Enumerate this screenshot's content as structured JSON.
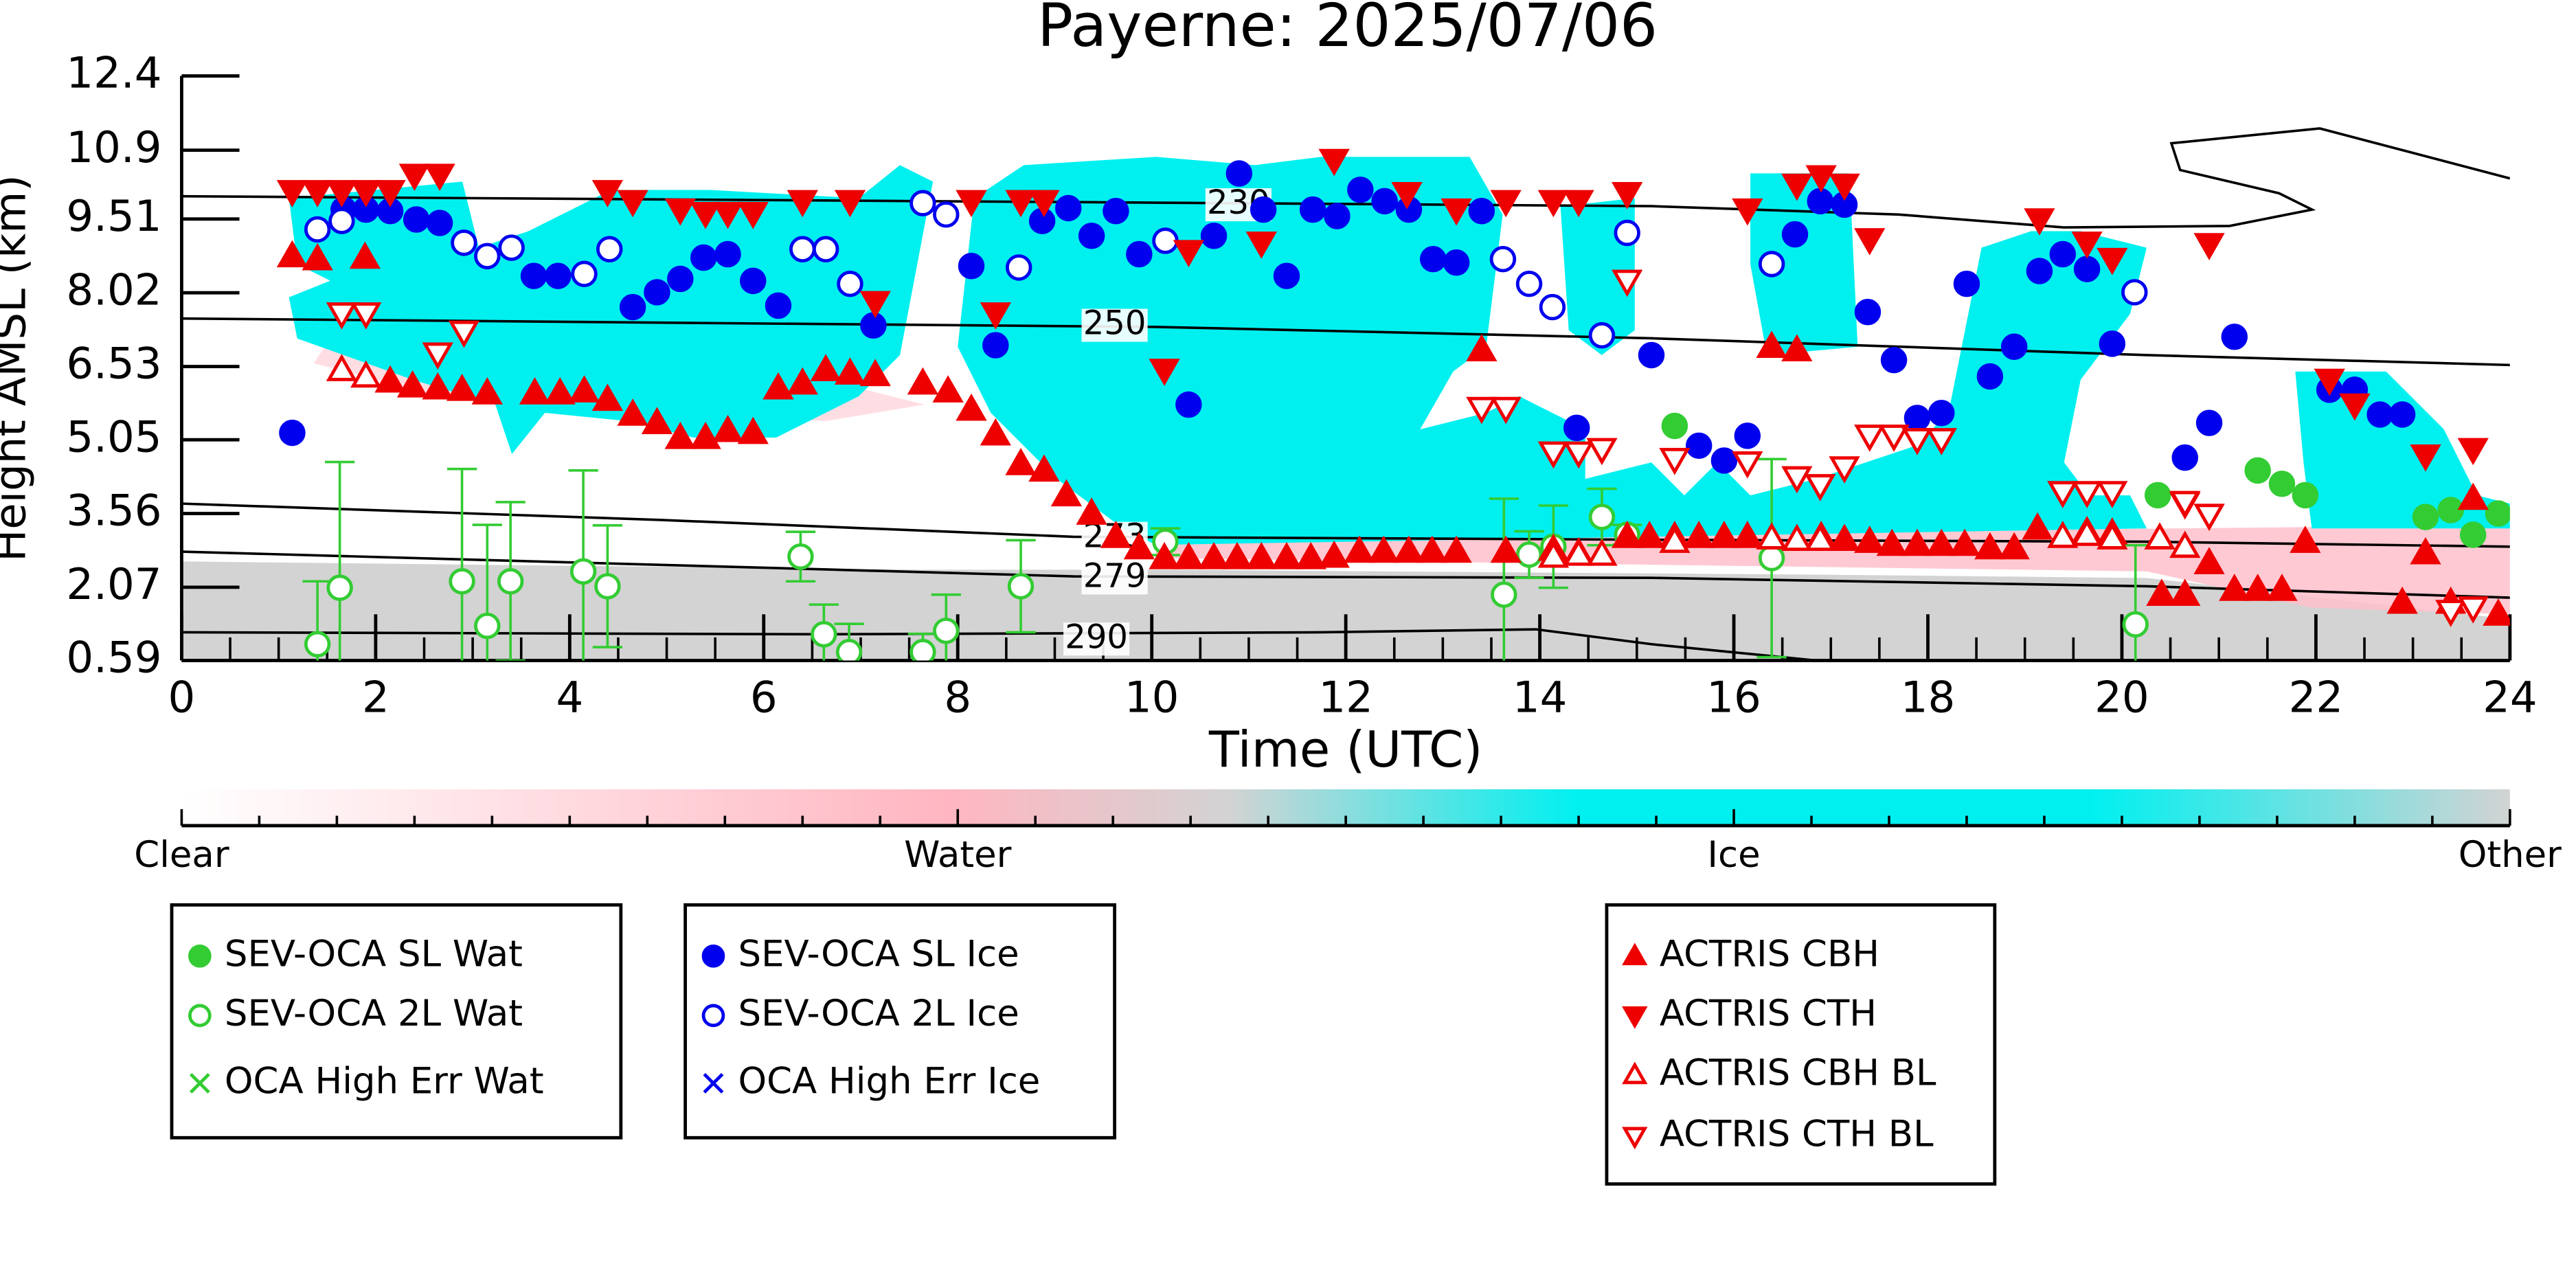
{
  "chart_data": {
    "type": "scatter",
    "title": "Payerne: 2025/07/06",
    "x_label": "Time (UTC)",
    "y_label": "Height AMSL (km)",
    "xlim": [
      0,
      24
    ],
    "xticks": [
      0,
      2,
      4,
      6,
      8,
      10,
      12,
      14,
      16,
      18,
      20,
      22,
      24
    ],
    "ylim": [
      0.59,
      12.4
    ],
    "yticks": [
      0.59,
      2.07,
      3.56,
      5.05,
      6.53,
      8.02,
      9.51,
      10.9,
      12.4
    ],
    "colorbar": {
      "labels": [
        "Clear",
        "Water",
        "Ice",
        "Other"
      ],
      "colors": [
        "#ffffff",
        "#ffb6c1",
        "#00f0f0",
        "#d3d3d3"
      ]
    },
    "contours": [
      {
        "level": 230,
        "x": [
          0,
          10.04,
          15.15,
          17.7,
          19.4,
          21.11,
          21.96,
          21.62,
          20.6,
          20.51,
          22.04,
          24
        ],
        "y": [
          9.97,
          9.84,
          9.77,
          9.6,
          9.34,
          9.37,
          9.7,
          10.03,
          10.5,
          11.04,
          11.34,
          10.33
        ]
      },
      {
        "level": 250,
        "x": [
          0,
          10.04,
          15.15,
          20.26,
          24
        ],
        "y": [
          7.5,
          7.33,
          7.1,
          6.76,
          6.56
        ]
      },
      {
        "level": 273,
        "x": [
          0,
          4.94,
          9.19,
          15.15,
          20.26,
          24
        ],
        "y": [
          3.76,
          3.43,
          3.09,
          3.03,
          2.99,
          2.89
        ]
      },
      {
        "level": 279,
        "x": [
          0,
          6.64,
          9.19,
          15.15,
          20.26,
          24
        ],
        "y": [
          2.79,
          2.43,
          2.29,
          2.26,
          2.09,
          1.86
        ]
      },
      {
        "level": 290,
        "x": [
          0,
          6.64,
          11.74,
          13.96,
          15.15,
          16.85
        ],
        "y": [
          1.16,
          1.12,
          1.16,
          1.22,
          0.92,
          0.59
        ]
      }
    ],
    "series": [
      {
        "name": "SEV-OCA SL Wat",
        "color": "#33cc33",
        "marker": "circle",
        "filled": true,
        "x": [
          15.39,
          20.37,
          21.4,
          21.65,
          21.89,
          23.13,
          23.39,
          23.62,
          23.88
        ],
        "y": [
          5.33,
          3.93,
          4.43,
          4.16,
          3.93,
          3.49,
          3.63,
          3.13,
          3.56
        ]
      },
      {
        "name": "SEV-OCA 2L Wat",
        "color": "#33cc33",
        "marker": "circle",
        "filled": false,
        "x": [
          1.4,
          1.63,
          2.89,
          3.15,
          3.39,
          4.14,
          4.39,
          6.38,
          6.62,
          6.88,
          7.64,
          7.88,
          8.65,
          10.14,
          13.63,
          13.89,
          14.14,
          14.64,
          14.9,
          16.39,
          20.14
        ],
        "y": [
          0.92,
          2.06,
          2.19,
          1.29,
          2.19,
          2.39,
          2.09,
          2.69,
          1.12,
          0.76,
          0.76,
          1.19,
          2.09,
          2.99,
          1.92,
          2.73,
          2.89,
          3.49,
          3.13,
          2.66,
          1.32
        ],
        "errors": [
          1.27,
          2.54,
          2.27,
          2.04,
          1.6,
          2.04,
          1.23,
          0.5,
          0.6,
          0.57,
          0.37,
          0.73,
          0.93,
          0.27,
          1.94,
          0.47,
          0.83,
          0.57,
          0.2,
          2.0,
          1.6
        ]
      },
      {
        "name": "OCA High Err Wat",
        "color": "#33cc33",
        "marker": "x",
        "filled": true,
        "x": [],
        "y": []
      },
      {
        "name": "SEV-OCA SL Ice",
        "color": "#0000ee",
        "marker": "circle",
        "filled": true,
        "x": [
          1.14,
          1.67,
          1.9,
          2.15,
          2.42,
          2.66,
          3.63,
          3.88,
          4.65,
          4.9,
          5.14,
          5.38,
          5.63,
          5.89,
          6.15,
          7.13,
          8.14,
          8.39,
          8.87,
          9.14,
          9.38,
          9.63,
          9.87,
          10.38,
          10.64,
          10.9,
          11.15,
          11.39,
          11.66,
          11.91,
          12.15,
          12.4,
          12.65,
          12.9,
          13.14,
          13.4,
          14.38,
          15.15,
          15.64,
          15.9,
          16.14,
          16.63,
          16.89,
          17.14,
          17.38,
          17.65,
          17.89,
          18.14,
          18.4,
          18.64,
          18.89,
          19.15,
          19.39,
          19.64,
          19.9,
          20.65,
          20.9,
          21.16,
          22.14,
          22.4,
          22.66,
          22.89
        ],
        "y": [
          5.19,
          9.7,
          9.7,
          9.67,
          9.5,
          9.43,
          8.36,
          8.36,
          7.73,
          8.03,
          8.3,
          8.73,
          8.8,
          8.26,
          7.76,
          7.36,
          8.56,
          6.96,
          9.47,
          9.73,
          9.17,
          9.67,
          8.8,
          5.76,
          9.17,
          10.43,
          9.7,
          8.36,
          9.7,
          9.57,
          10.1,
          9.87,
          9.7,
          8.7,
          8.63,
          9.67,
          5.29,
          6.76,
          4.93,
          4.63,
          5.13,
          9.2,
          9.87,
          9.8,
          7.63,
          6.66,
          5.49,
          5.59,
          8.2,
          6.33,
          6.93,
          8.46,
          8.8,
          8.5,
          6.99,
          4.69,
          5.39,
          7.13,
          6.06,
          6.06,
          5.56,
          5.56
        ]
      },
      {
        "name": "SEV-OCA 2L Ice",
        "color": "#0000ee",
        "marker": "circle",
        "filled": false,
        "x": [
          1.4,
          1.65,
          2.91,
          3.15,
          3.4,
          4.15,
          4.41,
          6.4,
          6.64,
          6.89,
          7.64,
          7.88,
          8.63,
          10.14,
          13.62,
          13.89,
          14.13,
          14.64,
          14.9,
          16.39,
          20.13
        ],
        "y": [
          9.3,
          9.47,
          9.03,
          8.76,
          8.93,
          8.4,
          8.9,
          8.9,
          8.9,
          8.2,
          9.83,
          9.6,
          8.53,
          9.07,
          8.7,
          8.2,
          7.73,
          7.16,
          9.23,
          8.6,
          8.03
        ]
      },
      {
        "name": "OCA High Err Ice",
        "color": "#0000ee",
        "marker": "x",
        "filled": true,
        "x": [],
        "y": []
      },
      {
        "name": "ACTRIS CBH",
        "color": "#ee0000",
        "marker": "triangle-up",
        "filled": true,
        "x": [
          1.14,
          1.4,
          1.89,
          2.15,
          2.38,
          2.64,
          2.89,
          3.15,
          3.64,
          3.9,
          4.15,
          4.39,
          4.65,
          4.9,
          5.14,
          5.4,
          5.63,
          5.89,
          6.15,
          6.4,
          6.64,
          6.89,
          7.15,
          7.64,
          7.9,
          8.14,
          8.39,
          8.65,
          8.89,
          9.12,
          9.38,
          9.63,
          9.87,
          10.13,
          10.38,
          10.64,
          10.88,
          11.13,
          11.39,
          11.64,
          11.88,
          12.14,
          12.39,
          12.65,
          12.89,
          13.14,
          13.4,
          13.65,
          14.14,
          14.4,
          14.9,
          15.13,
          15.39,
          15.64,
          15.9,
          16.14,
          16.39,
          16.65,
          16.9,
          17.14,
          17.4,
          17.63,
          17.89,
          18.14,
          18.38,
          18.64,
          18.89,
          19.13,
          19.64,
          19.9,
          20.41,
          20.65,
          20.9,
          21.16,
          21.4,
          21.65,
          21.89,
          22.89,
          23.13,
          23.39,
          23.62,
          23.88
        ],
        "y": [
          8.76,
          8.7,
          8.73,
          6.23,
          6.13,
          6.09,
          6.06,
          5.99,
          5.99,
          5.99,
          6.03,
          5.86,
          5.56,
          5.39,
          5.09,
          5.09,
          5.23,
          5.19,
          6.09,
          6.19,
          6.46,
          6.39,
          6.36,
          6.19,
          6.03,
          5.66,
          5.16,
          4.56,
          4.43,
          3.93,
          3.56,
          3.09,
          2.86,
          2.66,
          2.66,
          2.66,
          2.66,
          2.66,
          2.66,
          2.66,
          2.69,
          2.79,
          2.79,
          2.79,
          2.79,
          2.79,
          6.86,
          2.79,
          2.83,
          2.76,
          3.09,
          3.09,
          3.09,
          3.09,
          3.09,
          3.09,
          6.93,
          6.86,
          3.09,
          3.03,
          2.99,
          2.93,
          2.93,
          2.93,
          2.93,
          2.86,
          2.86,
          3.26,
          3.19,
          3.16,
          1.92,
          1.92,
          2.56,
          2.02,
          2.02,
          2.02,
          2.99,
          1.76,
          2.76,
          1.76,
          3.86,
          1.52
        ]
      },
      {
        "name": "ACTRIS CTH",
        "color": "#ee0000",
        "marker": "triangle-down",
        "filled": true,
        "x": [
          1.14,
          1.4,
          1.65,
          1.9,
          2.15,
          2.4,
          2.66,
          4.39,
          4.65,
          5.14,
          5.4,
          5.63,
          5.89,
          6.4,
          6.89,
          7.15,
          8.14,
          8.39,
          8.65,
          8.89,
          10.13,
          10.38,
          11.13,
          11.88,
          12.63,
          13.14,
          13.65,
          14.14,
          14.4,
          14.9,
          16.14,
          16.65,
          16.9,
          17.14,
          17.4,
          19.15,
          19.64,
          19.9,
          20.65,
          20.9,
          20.9,
          22.14,
          22.4,
          23.13,
          23.62
        ],
        "y": [
          10.07,
          10.07,
          10.07,
          10.07,
          10.07,
          10.4,
          10.4,
          10.07,
          9.87,
          9.7,
          9.63,
          9.63,
          9.63,
          9.87,
          9.87,
          7.83,
          9.87,
          7.6,
          9.87,
          9.87,
          6.46,
          8.86,
          9.03,
          10.7,
          10.03,
          9.7,
          9.87,
          9.87,
          9.87,
          10.03,
          9.7,
          10.2,
          10.37,
          10.2,
          9.1,
          9.5,
          9.03,
          8.7,
          3.76,
          9.0,
          3.53,
          6.26,
          5.76,
          4.73,
          4.86
        ]
      },
      {
        "name": "ACTRIS CBH BL",
        "color": "#ee0000",
        "marker": "triangle-up",
        "filled": false,
        "x": [
          1.65,
          1.9,
          14.14,
          14.4,
          14.64,
          15.39,
          16.39,
          16.65,
          16.89,
          19.39,
          19.64,
          19.9,
          20.39,
          20.65
        ],
        "y": [
          6.46,
          6.33,
          2.69,
          2.73,
          2.73,
          2.99,
          3.06,
          3.03,
          3.03,
          3.09,
          3.13,
          3.06,
          3.06,
          2.89
        ]
      },
      {
        "name": "ACTRIS CTH BL",
        "color": "#ee0000",
        "marker": "triangle-down",
        "filled": false,
        "x": [
          1.65,
          1.9,
          2.64,
          2.91,
          13.4,
          13.65,
          14.14,
          14.4,
          14.64,
          14.9,
          15.39,
          16.14,
          16.65,
          16.89,
          17.14,
          17.4,
          17.65,
          17.89,
          18.14,
          19.39,
          19.64,
          19.9,
          20.65,
          20.9,
          23.39,
          23.62
        ],
        "y": [
          7.6,
          7.6,
          6.79,
          7.23,
          5.69,
          5.69,
          4.79,
          4.79,
          4.86,
          8.26,
          4.66,
          4.59,
          4.29,
          4.13,
          4.49,
          5.13,
          5.13,
          5.06,
          5.06,
          3.99,
          3.99,
          3.99,
          3.79,
          3.53,
          1.59,
          1.66
        ]
      }
    ]
  }
}
